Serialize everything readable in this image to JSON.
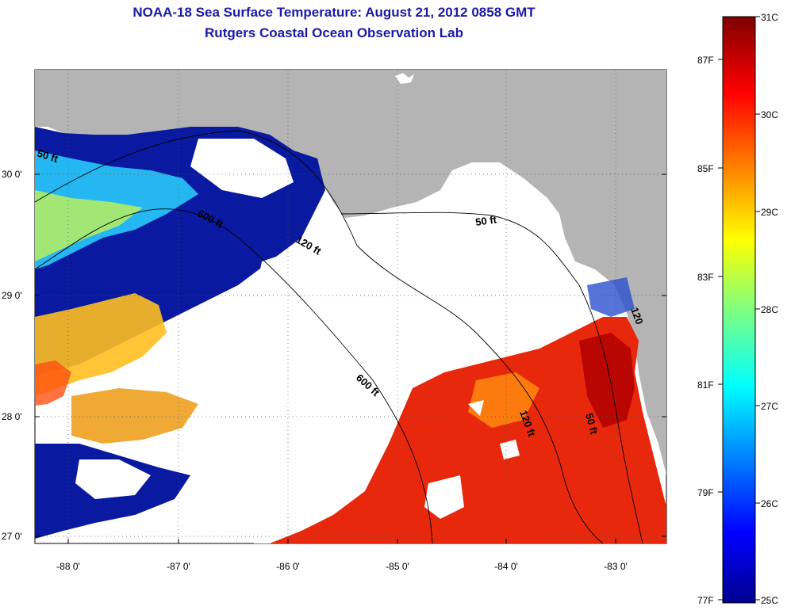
{
  "header": {
    "title": "NOAA-18 Sea Surface Temperature:  August 21, 2012 0858 GMT",
    "subtitle": "Rutgers Coastal Ocean Observation Lab"
  },
  "map": {
    "lat_ticks": [
      "30 0'",
      "29 0'",
      "28 0'",
      "27 0'"
    ],
    "lon_ticks": [
      "-88 0'",
      "-87 0'",
      "-86 0'",
      "-85 0'",
      "-84 0'",
      "-83 0'"
    ],
    "contour_labels": [
      "50 ft",
      "600 ft",
      "120 ft",
      "50 ft",
      "600 ft",
      "120 ft",
      "50 ft",
      "120"
    ]
  },
  "colorbar": {
    "celsius": [
      "31C",
      "30C",
      "29C",
      "28C",
      "27C",
      "26C",
      "25C"
    ],
    "fahrenheit": [
      "87F",
      "85F",
      "83F",
      "81F",
      "79F",
      "77F"
    ]
  },
  "colors": {
    "land": "#b4b4b4",
    "nodata": "#ffffff",
    "title": "#1a1aa6"
  }
}
